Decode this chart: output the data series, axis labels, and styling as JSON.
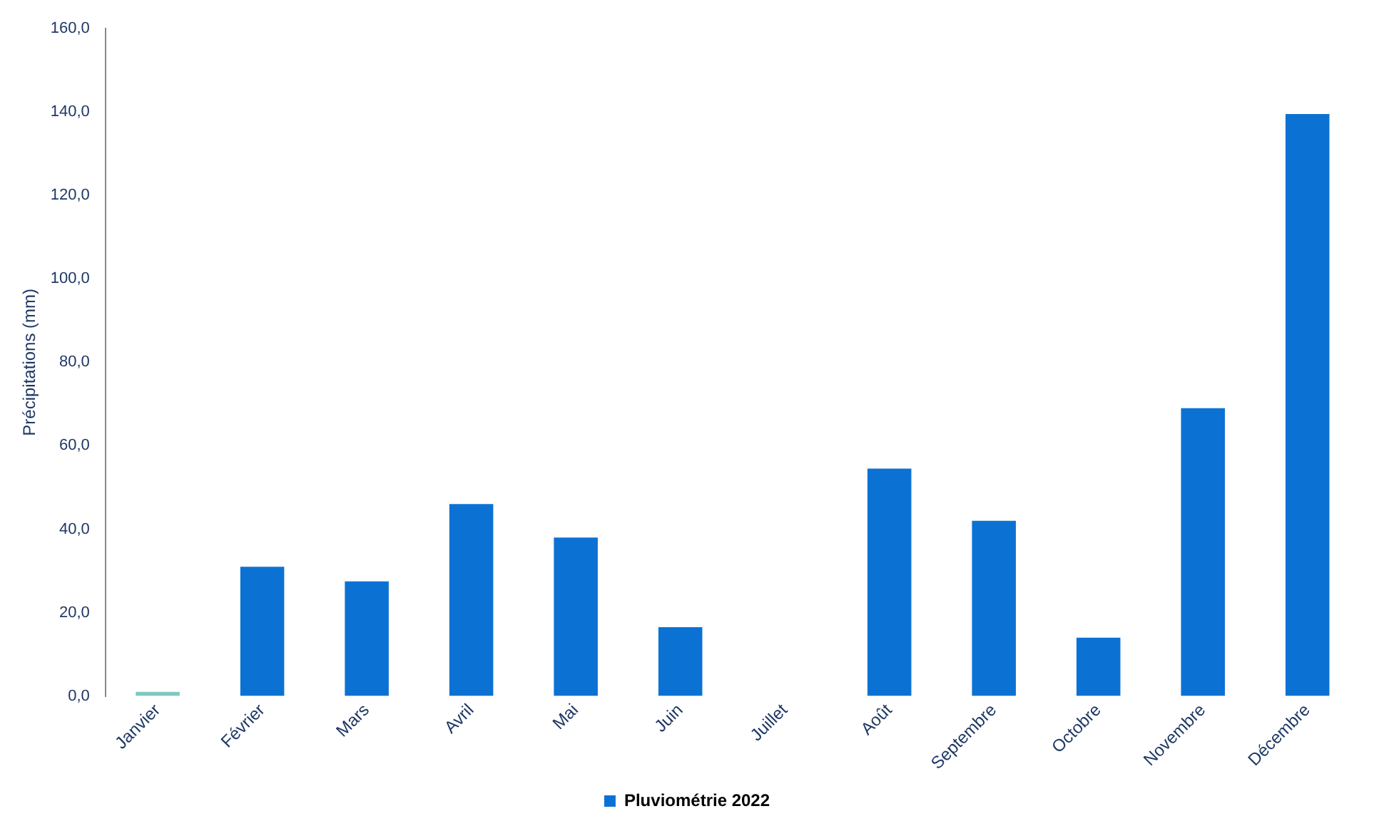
{
  "chart_data": {
    "type": "bar",
    "ylabel": "Précipitations (mm)",
    "categories": [
      "Janvier",
      "Février",
      "Mars",
      "Avril",
      "Mai",
      "Juin",
      "Juillet",
      "Août",
      "Septembre",
      "Octobre",
      "Novembre",
      "Décembre"
    ],
    "series": [
      {
        "name": "Pluviométrie 2022",
        "color": "#0b72d4",
        "colors": [
          "#7ec8c0",
          "#0b72d4",
          "#0b72d4",
          "#0b72d4",
          "#0b72d4",
          "#0b72d4",
          "#0b72d4",
          "#0b72d4",
          "#0b72d4",
          "#0b72d4",
          "#0b72d4",
          "#0b72d4"
        ],
        "values": [
          1,
          31,
          27.5,
          46,
          38,
          16.5,
          0,
          54.5,
          42,
          14,
          69,
          139.5
        ]
      }
    ],
    "ylim": [
      0,
      160
    ],
    "yticks": [
      {
        "value": 0,
        "label": "0,0"
      },
      {
        "value": 20,
        "label": "20,0"
      },
      {
        "value": 40,
        "label": "40,0"
      },
      {
        "value": 60,
        "label": "60,0"
      },
      {
        "value": 80,
        "label": "80,0"
      },
      {
        "value": 100,
        "label": "100,0"
      },
      {
        "value": 120,
        "label": "120,0"
      },
      {
        "value": 140,
        "label": "140,0"
      },
      {
        "value": 160,
        "label": "160,0"
      }
    ],
    "grid": false,
    "legend": "bottom"
  }
}
